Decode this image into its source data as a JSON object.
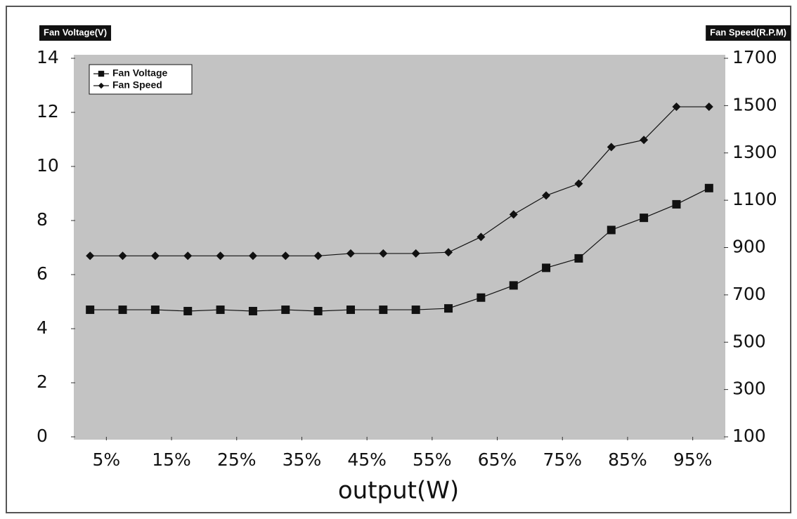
{
  "chart_data": {
    "type": "line",
    "y_axis_title": "Fan Voltage(V)",
    "y2_axis_title": "Fan Speed(R.P.M)",
    "x_axis_title": "output(W)",
    "x": [
      2.5,
      7.5,
      12.5,
      17.5,
      22.5,
      27.5,
      32.5,
      37.5,
      42.5,
      47.5,
      52.5,
      57.5,
      62.5,
      67.5,
      72.5,
      77.5,
      82.5,
      87.5,
      92.5,
      97.5
    ],
    "xlim": [
      0,
      100
    ],
    "xticks": [
      {
        "value": 5,
        "label": "5%"
      },
      {
        "value": 15,
        "label": "15%"
      },
      {
        "value": 25,
        "label": "25%"
      },
      {
        "value": 35,
        "label": "35%"
      },
      {
        "value": 45,
        "label": "45%"
      },
      {
        "value": 55,
        "label": "55%"
      },
      {
        "value": 65,
        "label": "65%"
      },
      {
        "value": 75,
        "label": "75%"
      },
      {
        "value": 85,
        "label": "85%"
      },
      {
        "value": 95,
        "label": "95%"
      }
    ],
    "ylim": [
      0,
      14
    ],
    "yticks": [
      0,
      2,
      4,
      6,
      8,
      10,
      12,
      14
    ],
    "y2lim": [
      100,
      1700
    ],
    "y2ticks": [
      100,
      300,
      500,
      700,
      900,
      1100,
      1300,
      1500,
      1700
    ],
    "legend": "top-left",
    "series": [
      {
        "name": "Fan Voltage",
        "color": "#111111",
        "marker": "square",
        "values": [
          4.7,
          4.7,
          4.7,
          4.65,
          4.7,
          4.65,
          4.7,
          4.65,
          4.7,
          4.7,
          4.7,
          4.75,
          5.15,
          5.6,
          6.25,
          6.6,
          7.65,
          8.1,
          8.6,
          9.2
        ]
      },
      {
        "name": "Fan Speed",
        "color": "#111111",
        "marker": "diamond",
        "axis": "y2",
        "values": [
          865,
          865,
          865,
          865,
          865,
          865,
          865,
          865,
          875,
          875,
          875,
          880,
          945,
          1040,
          1120,
          1170,
          1325,
          1355,
          1495,
          1495
        ]
      }
    ]
  }
}
